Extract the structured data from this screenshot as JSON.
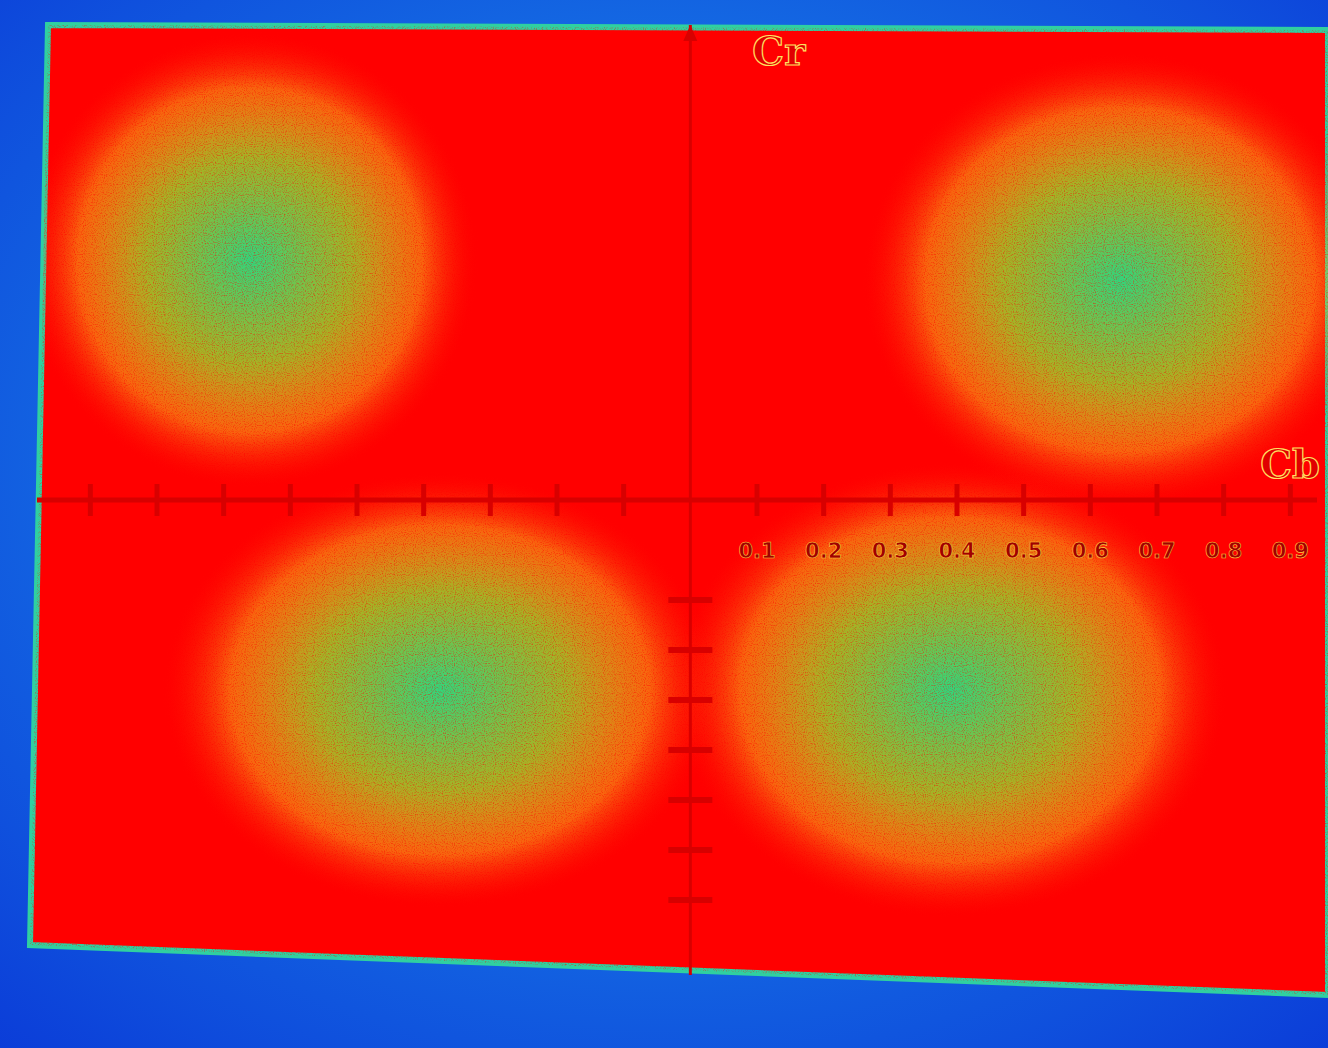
{
  "chart_data": {
    "type": "axes",
    "x_label": "Cb",
    "y_label": "Cr",
    "xlim": [
      -0.98,
      0.94
    ],
    "ylim": [
      -0.95,
      0.95
    ],
    "xticks": [
      0.1,
      0.2,
      0.3,
      0.4,
      0.5,
      0.6,
      0.7,
      0.8,
      0.9
    ],
    "xticks_minor": [
      -0.9,
      -0.8,
      -0.7,
      -0.6,
      -0.5,
      -0.4,
      -0.3,
      -0.2,
      -0.1
    ],
    "yticks_minor": [
      -0.2,
      -0.3,
      -0.4,
      -0.5,
      -0.6,
      -0.7,
      -0.8
    ],
    "tick_labels": "x",
    "grid": false
  }
}
